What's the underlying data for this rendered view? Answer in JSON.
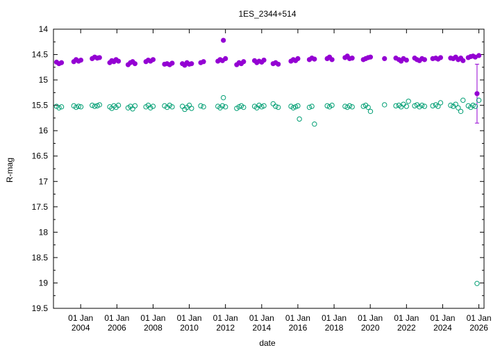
{
  "chart_data": {
    "type": "scatter",
    "title": "1ES_2344+514",
    "xlabel": "date",
    "ylabel": "R-mag",
    "y_inverted": true,
    "ylim": [
      19.5,
      14
    ],
    "xlim": [
      "2002-07-01",
      "2026-04-15"
    ],
    "grid": false,
    "y_ticks": [
      "14",
      "14.5",
      "15",
      "15.5",
      "16",
      "16.5",
      "17",
      "17.5",
      "18",
      "18.5",
      "19",
      "19.5"
    ],
    "x_ticks": [
      {
        "date": "2004-01-01",
        "line1": "01 Jan",
        "line2": "2004"
      },
      {
        "date": "2006-01-01",
        "line1": "01 Jan",
        "line2": "2006"
      },
      {
        "date": "2008-01-01",
        "line1": "01 Jan",
        "line2": "2008"
      },
      {
        "date": "2010-01-01",
        "line1": "01 Jan",
        "line2": "2010"
      },
      {
        "date": "2012-01-01",
        "line1": "01 Jan",
        "line2": "2012"
      },
      {
        "date": "2014-01-01",
        "line1": "01 Jan",
        "line2": "2014"
      },
      {
        "date": "2016-01-01",
        "line1": "01 Jan",
        "line2": "2016"
      },
      {
        "date": "2018-01-01",
        "line1": "01 Jan",
        "line2": "2018"
      },
      {
        "date": "2020-01-01",
        "line1": "01 Jan",
        "line2": "2020"
      },
      {
        "date": "2022-01-01",
        "line1": "01 Jan",
        "line2": "2022"
      },
      {
        "date": "2024-01-01",
        "line1": "01 Jan",
        "line2": "2024"
      },
      {
        "date": "2026-01-01",
        "line1": "01 Jan",
        "line2": "2026"
      }
    ],
    "series": [
      {
        "color": "#9400d3",
        "marker": "filled-circle",
        "points": [
          {
            "x": "2002-09-01",
            "y": 14.65
          },
          {
            "x": "2002-10-20",
            "y": 14.68
          },
          {
            "x": "2002-12-10",
            "y": 14.66
          },
          {
            "x": "2003-08-15",
            "y": 14.64
          },
          {
            "x": "2003-10-01",
            "y": 14.6
          },
          {
            "x": "2003-11-20",
            "y": 14.63
          },
          {
            "x": "2004-01-05",
            "y": 14.61
          },
          {
            "x": "2004-08-20",
            "y": 14.58
          },
          {
            "x": "2004-10-10",
            "y": 14.55
          },
          {
            "x": "2004-12-01",
            "y": 14.57
          },
          {
            "x": "2005-01-15",
            "y": 14.56
          },
          {
            "x": "2005-08-10",
            "y": 14.66
          },
          {
            "x": "2005-09-20",
            "y": 14.62
          },
          {
            "x": "2005-11-01",
            "y": 14.64
          },
          {
            "x": "2005-12-15",
            "y": 14.6
          },
          {
            "x": "2006-02-01",
            "y": 14.63
          },
          {
            "x": "2006-08-15",
            "y": 14.7
          },
          {
            "x": "2006-10-01",
            "y": 14.66
          },
          {
            "x": "2006-11-15",
            "y": 14.64
          },
          {
            "x": "2007-01-01",
            "y": 14.68
          },
          {
            "x": "2007-08-10",
            "y": 14.64
          },
          {
            "x": "2007-09-25",
            "y": 14.61
          },
          {
            "x": "2007-11-10",
            "y": 14.63
          },
          {
            "x": "2008-01-01",
            "y": 14.6
          },
          {
            "x": "2008-08-20",
            "y": 14.69
          },
          {
            "x": "2008-10-10",
            "y": 14.68
          },
          {
            "x": "2008-12-01",
            "y": 14.7
          },
          {
            "x": "2009-01-20",
            "y": 14.67
          },
          {
            "x": "2009-08-15",
            "y": 14.68
          },
          {
            "x": "2009-10-01",
            "y": 14.71
          },
          {
            "x": "2009-11-15",
            "y": 14.66
          },
          {
            "x": "2010-01-01",
            "y": 14.69
          },
          {
            "x": "2010-02-15",
            "y": 14.68
          },
          {
            "x": "2010-08-20",
            "y": 14.66
          },
          {
            "x": "2010-10-15",
            "y": 14.64
          },
          {
            "x": "2011-08-01",
            "y": 14.63
          },
          {
            "x": "2011-09-15",
            "y": 14.6
          },
          {
            "x": "2011-11-01",
            "y": 14.62
          },
          {
            "x": "2011-11-20",
            "y": 14.22
          },
          {
            "x": "2012-01-01",
            "y": 14.58
          },
          {
            "x": "2012-08-15",
            "y": 14.7
          },
          {
            "x": "2012-10-01",
            "y": 14.66
          },
          {
            "x": "2012-11-15",
            "y": 14.68
          },
          {
            "x": "2013-01-01",
            "y": 14.64
          },
          {
            "x": "2013-08-10",
            "y": 14.62
          },
          {
            "x": "2013-09-25",
            "y": 14.66
          },
          {
            "x": "2013-11-10",
            "y": 14.63
          },
          {
            "x": "2014-01-01",
            "y": 14.65
          },
          {
            "x": "2014-02-15",
            "y": 14.61
          },
          {
            "x": "2014-08-20",
            "y": 14.68
          },
          {
            "x": "2014-10-10",
            "y": 14.66
          },
          {
            "x": "2014-12-01",
            "y": 14.69
          },
          {
            "x": "2015-08-15",
            "y": 14.63
          },
          {
            "x": "2015-10-01",
            "y": 14.6
          },
          {
            "x": "2015-11-15",
            "y": 14.62
          },
          {
            "x": "2016-01-01",
            "y": 14.58
          },
          {
            "x": "2016-08-20",
            "y": 14.6
          },
          {
            "x": "2016-10-10",
            "y": 14.57
          },
          {
            "x": "2016-12-01",
            "y": 14.59
          },
          {
            "x": "2017-08-15",
            "y": 14.58
          },
          {
            "x": "2017-10-01",
            "y": 14.55
          },
          {
            "x": "2017-11-20",
            "y": 14.6
          },
          {
            "x": "2018-08-10",
            "y": 14.56
          },
          {
            "x": "2018-09-25",
            "y": 14.53
          },
          {
            "x": "2018-11-10",
            "y": 14.58
          },
          {
            "x": "2019-01-01",
            "y": 14.57
          },
          {
            "x": "2019-08-15",
            "y": 14.6
          },
          {
            "x": "2019-10-01",
            "y": 14.58
          },
          {
            "x": "2019-11-20",
            "y": 14.56
          },
          {
            "x": "2020-01-05",
            "y": 14.55
          },
          {
            "x": "2020-10-15",
            "y": 14.58
          },
          {
            "x": "2021-06-01",
            "y": 14.57
          },
          {
            "x": "2021-08-01",
            "y": 14.6
          },
          {
            "x": "2021-09-15",
            "y": 14.63
          },
          {
            "x": "2021-11-01",
            "y": 14.58
          },
          {
            "x": "2022-01-01",
            "y": 14.61
          },
          {
            "x": "2022-06-15",
            "y": 14.57
          },
          {
            "x": "2022-08-01",
            "y": 14.6
          },
          {
            "x": "2022-09-20",
            "y": 14.62
          },
          {
            "x": "2022-11-10",
            "y": 14.58
          },
          {
            "x": "2023-01-01",
            "y": 14.6
          },
          {
            "x": "2023-06-15",
            "y": 14.58
          },
          {
            "x": "2023-08-15",
            "y": 14.57
          },
          {
            "x": "2023-10-01",
            "y": 14.59
          },
          {
            "x": "2023-11-20",
            "y": 14.56
          },
          {
            "x": "2024-06-10",
            "y": 14.57
          },
          {
            "x": "2024-08-01",
            "y": 14.58
          },
          {
            "x": "2024-09-20",
            "y": 14.55
          },
          {
            "x": "2024-11-10",
            "y": 14.6
          },
          {
            "x": "2025-01-01",
            "y": 14.57
          },
          {
            "x": "2025-02-15",
            "y": 14.62
          },
          {
            "x": "2025-06-01",
            "y": 14.56
          },
          {
            "x": "2025-07-20",
            "y": 14.54
          },
          {
            "x": "2025-09-05",
            "y": 14.53
          },
          {
            "x": "2025-10-20",
            "y": 14.55
          },
          {
            "x": "2025-11-25",
            "y": 15.27,
            "yerr": 0.58
          },
          {
            "x": "2026-01-01",
            "y": 14.52
          }
        ]
      },
      {
        "color": "#009e73",
        "marker": "open-circle",
        "points": [
          {
            "x": "2002-09-01",
            "y": 15.52
          },
          {
            "x": "2002-10-20",
            "y": 15.55
          },
          {
            "x": "2002-12-10",
            "y": 15.53
          },
          {
            "x": "2003-08-15",
            "y": 15.51
          },
          {
            "x": "2003-10-01",
            "y": 15.54
          },
          {
            "x": "2003-11-20",
            "y": 15.52
          },
          {
            "x": "2004-01-05",
            "y": 15.53
          },
          {
            "x": "2004-08-20",
            "y": 15.5
          },
          {
            "x": "2004-10-10",
            "y": 15.52
          },
          {
            "x": "2004-12-01",
            "y": 15.51
          },
          {
            "x": "2005-01-15",
            "y": 15.49
          },
          {
            "x": "2005-08-10",
            "y": 15.53
          },
          {
            "x": "2005-09-20",
            "y": 15.56
          },
          {
            "x": "2005-11-01",
            "y": 15.51
          },
          {
            "x": "2005-12-15",
            "y": 15.54
          },
          {
            "x": "2006-02-01",
            "y": 15.5
          },
          {
            "x": "2006-08-15",
            "y": 15.55
          },
          {
            "x": "2006-10-01",
            "y": 15.52
          },
          {
            "x": "2006-11-15",
            "y": 15.57
          },
          {
            "x": "2007-01-01",
            "y": 15.51
          },
          {
            "x": "2007-08-10",
            "y": 15.53
          },
          {
            "x": "2007-09-25",
            "y": 15.5
          },
          {
            "x": "2007-11-10",
            "y": 15.55
          },
          {
            "x": "2008-01-01",
            "y": 15.52
          },
          {
            "x": "2008-08-20",
            "y": 15.51
          },
          {
            "x": "2008-10-10",
            "y": 15.54
          },
          {
            "x": "2008-12-01",
            "y": 15.5
          },
          {
            "x": "2009-01-20",
            "y": 15.53
          },
          {
            "x": "2009-08-15",
            "y": 15.52
          },
          {
            "x": "2009-10-01",
            "y": 15.58
          },
          {
            "x": "2009-11-15",
            "y": 15.54
          },
          {
            "x": "2010-01-01",
            "y": 15.5
          },
          {
            "x": "2010-02-15",
            "y": 15.56
          },
          {
            "x": "2010-08-20",
            "y": 15.51
          },
          {
            "x": "2010-10-15",
            "y": 15.53
          },
          {
            "x": "2011-08-01",
            "y": 15.52
          },
          {
            "x": "2011-09-15",
            "y": 15.55
          },
          {
            "x": "2011-11-01",
            "y": 15.51
          },
          {
            "x": "2011-11-20",
            "y": 15.35
          },
          {
            "x": "2012-01-01",
            "y": 15.53
          },
          {
            "x": "2012-08-15",
            "y": 15.56
          },
          {
            "x": "2012-10-01",
            "y": 15.53
          },
          {
            "x": "2012-11-15",
            "y": 15.51
          },
          {
            "x": "2013-01-01",
            "y": 15.54
          },
          {
            "x": "2013-08-10",
            "y": 15.52
          },
          {
            "x": "2013-09-25",
            "y": 15.55
          },
          {
            "x": "2013-11-10",
            "y": 15.5
          },
          {
            "x": "2014-01-01",
            "y": 15.53
          },
          {
            "x": "2014-02-15",
            "y": 15.51
          },
          {
            "x": "2014-08-20",
            "y": 15.47
          },
          {
            "x": "2014-10-10",
            "y": 15.52
          },
          {
            "x": "2014-12-01",
            "y": 15.54
          },
          {
            "x": "2015-08-15",
            "y": 15.52
          },
          {
            "x": "2015-10-01",
            "y": 15.55
          },
          {
            "x": "2015-11-15",
            "y": 15.53
          },
          {
            "x": "2016-01-01",
            "y": 15.51
          },
          {
            "x": "2016-02-01",
            "y": 15.77
          },
          {
            "x": "2016-08-20",
            "y": 15.54
          },
          {
            "x": "2016-10-10",
            "y": 15.52
          },
          {
            "x": "2016-12-01",
            "y": 15.87
          },
          {
            "x": "2017-08-15",
            "y": 15.51
          },
          {
            "x": "2017-10-01",
            "y": 15.53
          },
          {
            "x": "2017-11-20",
            "y": 15.5
          },
          {
            "x": "2018-08-10",
            "y": 15.52
          },
          {
            "x": "2018-09-25",
            "y": 15.54
          },
          {
            "x": "2018-11-10",
            "y": 15.51
          },
          {
            "x": "2019-01-01",
            "y": 15.53
          },
          {
            "x": "2019-08-15",
            "y": 15.52
          },
          {
            "x": "2019-10-01",
            "y": 15.5
          },
          {
            "x": "2019-11-20",
            "y": 15.54
          },
          {
            "x": "2020-01-05",
            "y": 15.62
          },
          {
            "x": "2020-10-15",
            "y": 15.49
          },
          {
            "x": "2021-06-01",
            "y": 15.51
          },
          {
            "x": "2021-08-01",
            "y": 15.5
          },
          {
            "x": "2021-09-15",
            "y": 15.53
          },
          {
            "x": "2021-11-01",
            "y": 15.48
          },
          {
            "x": "2022-01-01",
            "y": 15.52
          },
          {
            "x": "2022-02-10",
            "y": 15.42
          },
          {
            "x": "2022-06-15",
            "y": 15.51
          },
          {
            "x": "2022-08-01",
            "y": 15.49
          },
          {
            "x": "2022-09-20",
            "y": 15.53
          },
          {
            "x": "2022-11-10",
            "y": 15.5
          },
          {
            "x": "2023-01-01",
            "y": 15.52
          },
          {
            "x": "2023-06-15",
            "y": 15.51
          },
          {
            "x": "2023-08-15",
            "y": 15.49
          },
          {
            "x": "2023-10-01",
            "y": 15.52
          },
          {
            "x": "2023-11-20",
            "y": 15.45
          },
          {
            "x": "2024-06-10",
            "y": 15.5
          },
          {
            "x": "2024-08-01",
            "y": 15.52
          },
          {
            "x": "2024-09-20",
            "y": 15.48
          },
          {
            "x": "2024-11-10",
            "y": 15.55
          },
          {
            "x": "2025-01-01",
            "y": 15.62
          },
          {
            "x": "2025-02-15",
            "y": 15.4
          },
          {
            "x": "2025-06-01",
            "y": 15.51
          },
          {
            "x": "2025-07-20",
            "y": 15.54
          },
          {
            "x": "2025-09-05",
            "y": 15.5
          },
          {
            "x": "2025-10-20",
            "y": 15.52
          },
          {
            "x": "2025-11-25",
            "y": 19.01
          },
          {
            "x": "2026-01-01",
            "y": 15.4
          }
        ]
      }
    ]
  }
}
